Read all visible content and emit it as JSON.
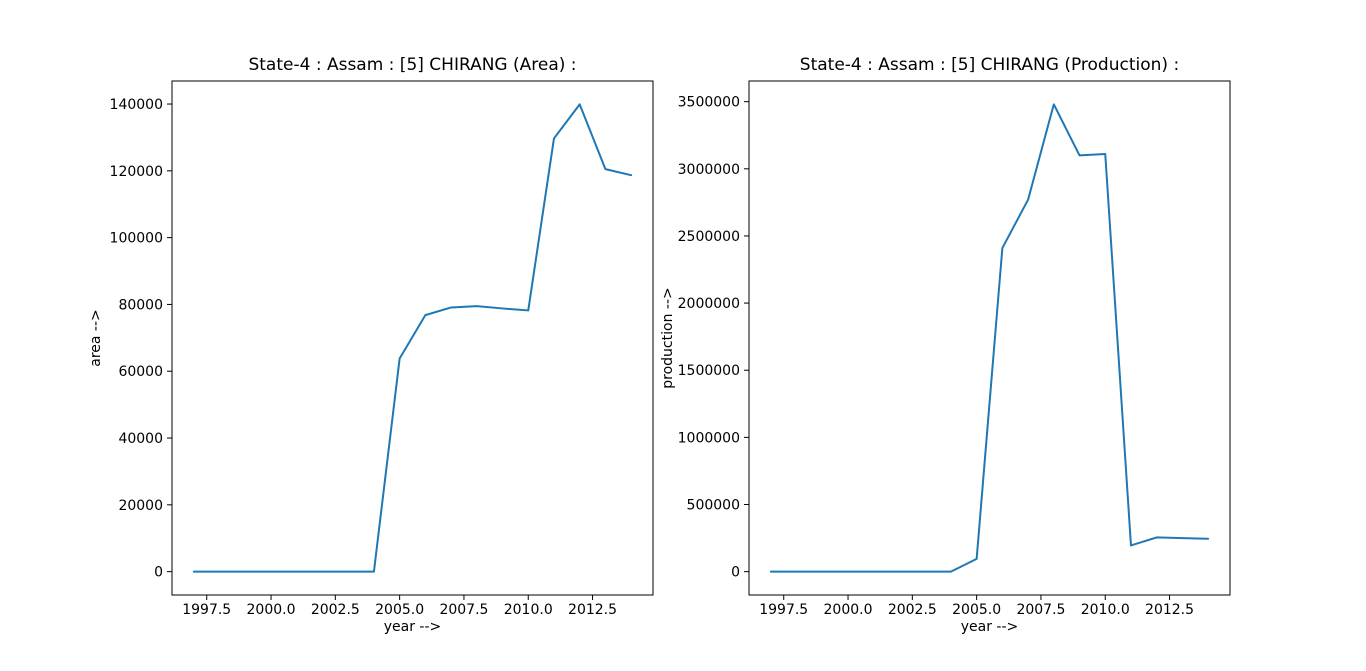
{
  "figure": {
    "background": "#ffffff",
    "text_color": "#000000",
    "frame_color": "#000000"
  },
  "chart_data": [
    {
      "type": "line",
      "title": "State-4 : Assam : [5] CHIRANG (Area) :",
      "xlabel": "year -->",
      "ylabel": "area -->",
      "line_color": "#1f77b4",
      "grid": false,
      "legend": "none",
      "x": [
        1997,
        1998,
        1999,
        2000,
        2001,
        2002,
        2003,
        2004,
        2005,
        2006,
        2007,
        2008,
        2009,
        2010,
        2011,
        2012,
        2013,
        2014
      ],
      "y": [
        0,
        0,
        0,
        0,
        0,
        0,
        0,
        0,
        63800,
        76800,
        79100,
        79500,
        78800,
        78200,
        129700,
        139900,
        120500,
        118700
      ],
      "xlim": [
        1996.15,
        2014.85
      ],
      "ylim": [
        -6995,
        146895
      ],
      "x_tick_values": [
        1997.5,
        2000.0,
        2002.5,
        2005.0,
        2007.5,
        2010.0,
        2012.5
      ],
      "x_tick_labels": [
        "1997.5",
        "2000.0",
        "2002.5",
        "2005.0",
        "2007.5",
        "2010.0",
        "2012.5"
      ],
      "y_tick_values": [
        0,
        20000,
        40000,
        60000,
        80000,
        100000,
        120000,
        140000
      ],
      "y_tick_labels": [
        "0",
        "20000",
        "40000",
        "60000",
        "80000",
        "100000",
        "120000",
        "140000"
      ]
    },
    {
      "type": "line",
      "title": "State-4 : Assam : [5] CHIRANG (Production) :",
      "xlabel": "year -->",
      "ylabel": "production -->",
      "line_color": "#1f77b4",
      "grid": false,
      "legend": "none",
      "x": [
        1997,
        1998,
        1999,
        2000,
        2001,
        2002,
        2003,
        2004,
        2005,
        2006,
        2007,
        2008,
        2009,
        2010,
        2011,
        2012,
        2013,
        2014
      ],
      "y": [
        0,
        0,
        0,
        0,
        0,
        0,
        0,
        0,
        95000,
        2410000,
        2770000,
        3480000,
        3100000,
        3110000,
        195000,
        255000,
        250000,
        245000
      ],
      "xlim": [
        1996.15,
        2014.85
      ],
      "ylim": [
        -174000,
        3654000
      ],
      "x_tick_values": [
        1997.5,
        2000.0,
        2002.5,
        2005.0,
        2007.5,
        2010.0,
        2012.5
      ],
      "x_tick_labels": [
        "1997.5",
        "2000.0",
        "2002.5",
        "2005.0",
        "2007.5",
        "2010.0",
        "2012.5"
      ],
      "y_tick_values": [
        0,
        500000,
        1000000,
        1500000,
        2000000,
        2500000,
        3000000,
        3500000
      ],
      "y_tick_labels": [
        "0",
        "500000",
        "1000000",
        "1500000",
        "2000000",
        "2500000",
        "3000000",
        "3500000"
      ]
    }
  ]
}
